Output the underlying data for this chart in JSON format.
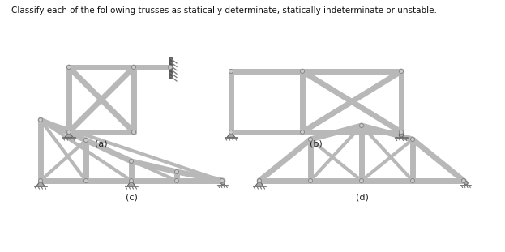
{
  "title": "Classify each of the following trusses as statically determinate, statically indeterminate or unstable.",
  "title_fontsize": 7.5,
  "bg_color": "#ffffff",
  "member_color": "#b8b8b8",
  "member_lw": 5,
  "member_lw2": 3,
  "label_fontsize": 8,
  "label_color": "#222222",
  "labels": [
    "(a)",
    "(b)",
    "(c)",
    "(d)"
  ]
}
